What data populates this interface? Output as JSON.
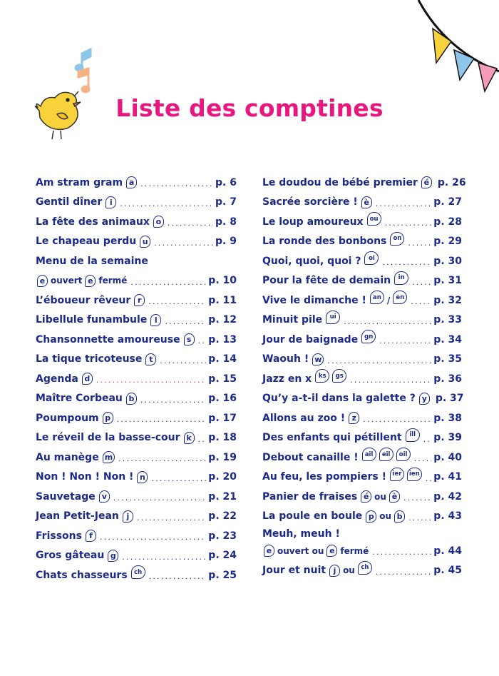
{
  "title": "Liste des comptines",
  "colors": {
    "title": "#e8177f",
    "text": "#1c2a8a",
    "bird": "#f7d23a",
    "flag_yellow": "#f7d23a",
    "flag_blue": "#8ec6ea",
    "flag_pink": "#f39bb8",
    "notes": "#8ec6ea"
  },
  "left": [
    {
      "parts": [
        {
          "t": "Am stram gram"
        },
        {
          "b": "a"
        }
      ],
      "page": "p. 6"
    },
    {
      "parts": [
        {
          "t": "Gentil dîner"
        },
        {
          "b": "i"
        }
      ],
      "page": "p. 7"
    },
    {
      "parts": [
        {
          "t": "La fête des animaux"
        },
        {
          "b": "o"
        }
      ],
      "page": "p. 8"
    },
    {
      "parts": [
        {
          "t": "Le chapeau perdu"
        },
        {
          "b": "u"
        }
      ],
      "page": "p. 9"
    },
    {
      "parts": [
        {
          "t": "Menu de la semaine"
        }
      ],
      "page": ""
    },
    {
      "parts": [
        {
          "b": "e"
        },
        {
          "s": "ouvert"
        },
        {
          "b": "e"
        },
        {
          "s": "fermé"
        }
      ],
      "page": "p. 10"
    },
    {
      "parts": [
        {
          "t": "L’éboueur rêveur"
        },
        {
          "b": "r"
        }
      ],
      "page": "p. 11"
    },
    {
      "parts": [
        {
          "t": "Libellule funambule"
        },
        {
          "b": "l"
        }
      ],
      "page": "p. 12"
    },
    {
      "parts": [
        {
          "t": "Chansonnette amoureuse"
        },
        {
          "b": "s"
        }
      ],
      "page": "p. 13"
    },
    {
      "parts": [
        {
          "t": "La tique tricoteuse"
        },
        {
          "b": "t"
        }
      ],
      "page": "p. 14"
    },
    {
      "parts": [
        {
          "t": "Agenda"
        },
        {
          "b": "d"
        }
      ],
      "page": "p. 15",
      "pink": true
    },
    {
      "parts": [
        {
          "t": "Maître Corbeau"
        },
        {
          "b": "b"
        }
      ],
      "page": "p. 16"
    },
    {
      "parts": [
        {
          "t": "Poumpoum"
        },
        {
          "b": "p"
        }
      ],
      "page": "p. 17"
    },
    {
      "parts": [
        {
          "t": "Le réveil de la basse-cour"
        },
        {
          "b": "k"
        }
      ],
      "page": "p. 18"
    },
    {
      "parts": [
        {
          "t": "Au manège"
        },
        {
          "b": "m"
        }
      ],
      "page": "p. 19"
    },
    {
      "parts": [
        {
          "t": "Non ! Non ! Non !"
        },
        {
          "b": "n"
        }
      ],
      "page": "p. 20"
    },
    {
      "parts": [
        {
          "t": "Sauvetage"
        },
        {
          "b": "v"
        }
      ],
      "page": "p. 21"
    },
    {
      "parts": [
        {
          "t": "Jean Petit-Jean"
        },
        {
          "b": "j"
        }
      ],
      "page": "p. 22"
    },
    {
      "parts": [
        {
          "t": "Frissons"
        },
        {
          "b": "f"
        }
      ],
      "page": "p. 23"
    },
    {
      "parts": [
        {
          "t": "Gros gâteau"
        },
        {
          "b": "g"
        }
      ],
      "page": "p. 24"
    },
    {
      "parts": [
        {
          "t": "Chats chasseurs"
        },
        {
          "bs": "ch"
        }
      ],
      "page": "p. 25"
    }
  ],
  "right": [
    {
      "parts": [
        {
          "t": "Le doudou de bébé premier"
        },
        {
          "b": "é"
        }
      ],
      "page": "p. 26"
    },
    {
      "parts": [
        {
          "t": "Sacrée sorcière !"
        },
        {
          "b": "è"
        }
      ],
      "page": "p. 27"
    },
    {
      "parts": [
        {
          "t": "Le loup amoureux"
        },
        {
          "bs": "ou"
        }
      ],
      "page": "p. 28"
    },
    {
      "parts": [
        {
          "t": "La ronde des bonbons"
        },
        {
          "bs": "on"
        }
      ],
      "page": "p. 29"
    },
    {
      "parts": [
        {
          "t": "Quoi, quoi, quoi ?"
        },
        {
          "bs": "oi"
        }
      ],
      "page": "p. 30"
    },
    {
      "parts": [
        {
          "t": "Pour la fête de demain"
        },
        {
          "bs": "in"
        }
      ],
      "page": "p. 31"
    },
    {
      "parts": [
        {
          "t": "Vive le dimanche !"
        },
        {
          "bs": "an"
        },
        {
          "s": "/"
        },
        {
          "bs": "en"
        }
      ],
      "page": "p. 32"
    },
    {
      "parts": [
        {
          "t": "Minuit pile"
        },
        {
          "bs": "ui"
        }
      ],
      "page": "p. 33"
    },
    {
      "parts": [
        {
          "t": "Jour de baignade"
        },
        {
          "bs": "gn"
        }
      ],
      "page": "p. 34"
    },
    {
      "parts": [
        {
          "t": "Waouh !"
        },
        {
          "b": "w"
        }
      ],
      "page": "p. 35"
    },
    {
      "parts": [
        {
          "t": "Jazz en x"
        },
        {
          "bs": "ks"
        },
        {
          "bs": "gs"
        }
      ],
      "page": "p. 36"
    },
    {
      "parts": [
        {
          "t": "Qu’y a-t-il dans la galette ?"
        },
        {
          "b": "y"
        }
      ],
      "page": "p. 37"
    },
    {
      "parts": [
        {
          "t": "Allons au zoo !"
        },
        {
          "b": "z"
        }
      ],
      "page": "p. 38"
    },
    {
      "parts": [
        {
          "t": "Des enfants qui pétillent"
        },
        {
          "bs": "ill"
        }
      ],
      "page": "p. 39"
    },
    {
      "parts": [
        {
          "t": "Debout canaille !"
        },
        {
          "bs": "ail"
        },
        {
          "bs": "eil"
        },
        {
          "bs": "oil"
        }
      ],
      "page": "p. 40"
    },
    {
      "parts": [
        {
          "t": "Au feu, les pompiers !"
        },
        {
          "bs": "ier"
        },
        {
          "bs": "ien"
        }
      ],
      "page": "p. 41"
    },
    {
      "parts": [
        {
          "t": "Panier de fraises"
        },
        {
          "b": "é"
        },
        {
          "s": "ou"
        },
        {
          "b": "è"
        }
      ],
      "page": "p. 42"
    },
    {
      "parts": [
        {
          "t": "La poule en  boule"
        },
        {
          "b": "p"
        },
        {
          "s": "ou"
        },
        {
          "b": "b"
        }
      ],
      "page": "p. 43"
    },
    {
      "parts": [
        {
          "t": "Meuh, meuh !"
        }
      ],
      "page": "",
      "tight": true
    },
    {
      "parts": [
        {
          "b": "e"
        },
        {
          "s": "ouvert ou"
        },
        {
          "b": "e"
        },
        {
          "s": "fermé"
        }
      ],
      "page": "p. 44"
    },
    {
      "parts": [
        {
          "t": "Jour et nuit"
        },
        {
          "b": "j"
        },
        {
          "s": "ou"
        },
        {
          "bs": "ch"
        }
      ],
      "page": "p. 45"
    }
  ]
}
